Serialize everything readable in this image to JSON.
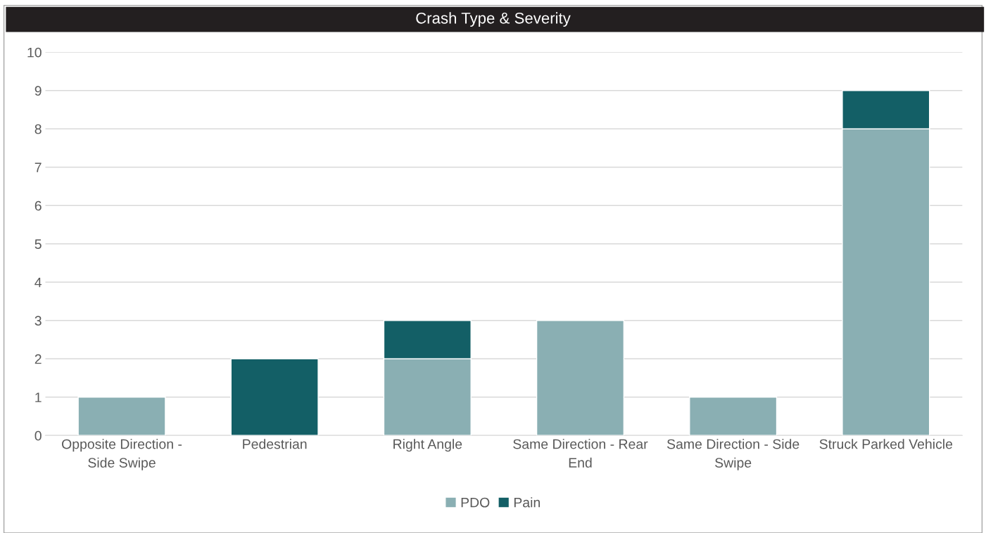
{
  "chart_data": {
    "type": "bar",
    "title": "Crash Type & Severity",
    "categories": [
      "Opposite Direction - Side Swipe",
      "Pedestrian",
      "Right Angle",
      "Same Direction - Rear End",
      "Same Direction - Side Swipe",
      "Struck Parked Vehicle"
    ],
    "series": [
      {
        "name": "PDO",
        "color": "#8aafb3",
        "values": [
          1,
          0,
          2,
          3,
          1,
          8
        ]
      },
      {
        "name": "Pain",
        "color": "#135f66",
        "values": [
          null,
          2,
          1,
          null,
          null,
          1
        ]
      }
    ],
    "stacked": true,
    "ylim": [
      0,
      10
    ],
    "yticks": [
      0,
      1,
      2,
      3,
      4,
      5,
      6,
      7,
      8,
      9,
      10
    ],
    "grid": "y",
    "legend": "bottom"
  }
}
